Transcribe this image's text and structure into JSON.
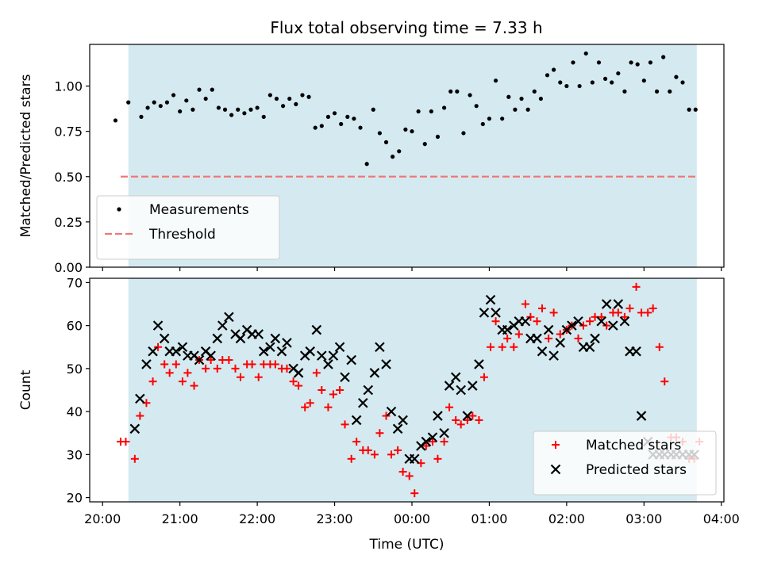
{
  "title": "Flux total observing time = 7.33 h",
  "chart_data": [
    {
      "type": "scatter",
      "title": "Flux total observing time = 7.33 h",
      "ylabel": "Matched/Predicted stars",
      "xlabel": "",
      "ylim": [
        0,
        1.23
      ],
      "xlim": [
        "20:10",
        "04:02"
      ],
      "yticks": [
        "0.00",
        "0.25",
        "0.50",
        "0.75",
        "1.00"
      ],
      "shaded_region": [
        "20:20",
        "03:41"
      ],
      "shaded_color": "#d4eaf0",
      "grid": false,
      "legend_position": "lower-left",
      "series": [
        {
          "name": "Measurements",
          "marker": "dot",
          "color": "#000000",
          "x": [
            "20:10",
            "20:20",
            "20:30",
            "20:35",
            "20:40",
            "20:45",
            "20:50",
            "20:55",
            "21:00",
            "21:05",
            "21:10",
            "21:15",
            "21:20",
            "21:25",
            "21:30",
            "21:35",
            "21:40",
            "21:45",
            "21:50",
            "21:55",
            "22:00",
            "22:05",
            "22:10",
            "22:15",
            "22:20",
            "22:25",
            "22:30",
            "22:35",
            "22:40",
            "22:45",
            "22:50",
            "22:55",
            "23:00",
            "23:05",
            "23:10",
            "23:15",
            "23:20",
            "23:25",
            "23:30",
            "23:35",
            "23:40",
            "23:45",
            "23:50",
            "23:55",
            "00:00",
            "00:05",
            "00:10",
            "00:15",
            "00:20",
            "00:25",
            "00:30",
            "00:35",
            "00:40",
            "00:45",
            "00:50",
            "00:55",
            "01:00",
            "01:05",
            "01:10",
            "01:15",
            "01:20",
            "01:25",
            "01:30",
            "01:35",
            "01:40",
            "01:45",
            "01:50",
            "01:55",
            "02:00",
            "02:05",
            "02:10",
            "02:15",
            "02:20",
            "02:25",
            "02:30",
            "02:35",
            "02:40",
            "02:45",
            "02:50",
            "02:55",
            "03:00",
            "03:05",
            "03:10",
            "03:15",
            "03:20",
            "03:25",
            "03:30",
            "03:35",
            "03:40"
          ],
          "y": [
            0.81,
            0.91,
            0.83,
            0.88,
            0.91,
            0.89,
            0.91,
            0.95,
            0.86,
            0.92,
            0.87,
            0.98,
            0.93,
            0.98,
            0.88,
            0.87,
            0.84,
            0.87,
            0.85,
            0.87,
            0.88,
            0.83,
            0.95,
            0.93,
            0.89,
            0.93,
            0.9,
            0.95,
            0.94,
            0.77,
            0.78,
            0.83,
            0.85,
            0.79,
            0.83,
            0.82,
            0.77,
            0.57,
            0.87,
            0.74,
            0.69,
            0.61,
            0.64,
            0.76,
            0.75,
            0.86,
            0.68,
            0.86,
            0.72,
            0.88,
            0.97,
            0.97,
            0.74,
            0.95,
            0.89,
            0.79,
            0.82,
            1.03,
            0.82,
            0.94,
            0.87,
            0.93,
            0.87,
            0.97,
            0.93,
            1.06,
            1.09,
            1.02,
            1.0,
            1.13,
            1.0,
            1.18,
            1.02,
            1.13,
            1.04,
            1.02,
            1.07,
            0.97,
            1.13,
            1.12,
            1.03,
            1.13,
            0.97,
            1.16,
            0.97,
            1.05,
            1.02,
            0.87,
            0.87
          ]
        },
        {
          "name": "Threshold",
          "marker": "dashed-line",
          "color": "#f27676",
          "x": [
            "20:14",
            "03:41"
          ],
          "y": [
            0.5,
            0.5
          ]
        }
      ]
    },
    {
      "type": "scatter",
      "title": "",
      "ylabel": "Count",
      "xlabel": "Time (UTC)",
      "ylim": [
        19,
        71
      ],
      "xlim": [
        "20:10",
        "04:02"
      ],
      "yticks": [
        "20",
        "30",
        "40",
        "50",
        "60",
        "70"
      ],
      "xticks": [
        "20:00",
        "21:00",
        "22:00",
        "23:00",
        "00:00",
        "01:00",
        "02:00",
        "03:00",
        "04:00"
      ],
      "shaded_region": [
        "20:20",
        "03:41"
      ],
      "shaded_color": "#d4eaf0",
      "grid": false,
      "legend_position": "lower-right",
      "series": [
        {
          "name": "Matched stars",
          "marker": "plus",
          "color": "#ff0000",
          "x": [
            "20:14",
            "20:18",
            "20:25",
            "20:29",
            "20:34",
            "20:39",
            "20:43",
            "20:48",
            "20:52",
            "20:57",
            "21:02",
            "21:06",
            "21:11",
            "21:15",
            "21:20",
            "21:24",
            "21:29",
            "21:33",
            "21:38",
            "21:43",
            "21:47",
            "21:52",
            "21:56",
            "22:01",
            "22:05",
            "22:10",
            "22:14",
            "22:19",
            "22:23",
            "22:28",
            "22:32",
            "22:37",
            "22:41",
            "22:46",
            "22:50",
            "22:55",
            "22:59",
            "23:04",
            "23:08",
            "23:13",
            "23:17",
            "23:22",
            "23:26",
            "23:31",
            "23:35",
            "23:40",
            "23:44",
            "23:49",
            "23:53",
            "23:58",
            "00:02",
            "00:07",
            "00:11",
            "00:16",
            "00:20",
            "00:25",
            "00:29",
            "00:34",
            "00:38",
            "00:43",
            "00:47",
            "00:52",
            "00:56",
            "01:01",
            "01:05",
            "01:10",
            "01:14",
            "01:19",
            "01:23",
            "01:28",
            "01:32",
            "01:37",
            "01:41",
            "01:46",
            "01:50",
            "01:55",
            "02:00",
            "02:04",
            "02:09",
            "02:13",
            "02:18",
            "02:22",
            "02:27",
            "02:31",
            "02:36",
            "02:40",
            "02:45",
            "02:49",
            "02:54",
            "02:58",
            "03:03",
            "03:07",
            "03:12",
            "03:16",
            "03:21",
            "03:25",
            "03:30",
            "03:35",
            "03:39",
            "03:43"
          ],
          "y": [
            33,
            33,
            29,
            39,
            42,
            47,
            55,
            51,
            49,
            51,
            47,
            49,
            46,
            52,
            50,
            52,
            50,
            52,
            52,
            50,
            48,
            51,
            51,
            48,
            51,
            51,
            51,
            50,
            50,
            47,
            46,
            41,
            42,
            49,
            45,
            41,
            44,
            45,
            37,
            29,
            33,
            31,
            31,
            30,
            35,
            39,
            30,
            31,
            26,
            25,
            21,
            28,
            32,
            33,
            29,
            33,
            41,
            38,
            37,
            38,
            39,
            38,
            48,
            55,
            61,
            55,
            57,
            55,
            58,
            65,
            62,
            61,
            64,
            57,
            63,
            58,
            59,
            60,
            57,
            60,
            61,
            62,
            62,
            60,
            63,
            63,
            62,
            64,
            69,
            63,
            63,
            64,
            55,
            47,
            34,
            34,
            33,
            29,
            29,
            33
          ],
          "x_note": ""
        },
        {
          "name": "Predicted stars",
          "marker": "x",
          "color": "#000000",
          "x": [
            "20:25",
            "20:29",
            "20:34",
            "20:39",
            "20:43",
            "20:48",
            "20:52",
            "20:57",
            "21:02",
            "21:06",
            "21:11",
            "21:15",
            "21:20",
            "21:24",
            "21:29",
            "21:33",
            "21:38",
            "21:43",
            "21:47",
            "21:52",
            "21:56",
            "22:01",
            "22:05",
            "22:10",
            "22:14",
            "22:19",
            "22:23",
            "22:28",
            "22:32",
            "22:37",
            "22:41",
            "22:46",
            "22:50",
            "22:55",
            "22:59",
            "23:04",
            "23:08",
            "23:13",
            "23:17",
            "23:22",
            "23:26",
            "23:31",
            "23:35",
            "23:40",
            "23:44",
            "23:49",
            "23:53",
            "23:58",
            "00:02",
            "00:07",
            "00:11",
            "00:16",
            "00:20",
            "00:25",
            "00:29",
            "00:34",
            "00:38",
            "00:43",
            "00:47",
            "00:52",
            "00:56",
            "01:01",
            "01:05",
            "01:10",
            "01:14",
            "01:19",
            "01:23",
            "01:28",
            "01:32",
            "01:37",
            "01:41",
            "01:46",
            "01:50",
            "01:55",
            "02:00",
            "02:04",
            "02:09",
            "02:13",
            "02:18",
            "02:22",
            "02:27",
            "02:31",
            "02:36",
            "02:40",
            "02:45",
            "02:49",
            "02:54",
            "02:58",
            "03:03",
            "03:07",
            "03:12",
            "03:16",
            "03:21",
            "03:25",
            "03:30",
            "03:35",
            "03:39"
          ],
          "y": [
            36,
            43,
            51,
            54,
            60,
            57,
            54,
            54,
            55,
            53,
            53,
            52,
            54,
            53,
            57,
            60,
            62,
            58,
            57,
            59,
            58,
            58,
            54,
            55,
            57,
            54,
            56,
            50,
            49,
            53,
            54,
            59,
            53,
            51,
            53,
            55,
            48,
            52,
            38,
            42,
            45,
            49,
            55,
            51,
            40,
            36,
            38,
            29,
            29,
            32,
            33,
            34,
            39,
            35,
            46,
            48,
            45,
            39,
            46,
            51,
            63,
            66,
            63,
            59,
            59,
            60,
            61,
            61,
            57,
            57,
            54,
            59,
            53,
            56,
            59,
            60,
            61,
            55,
            55,
            57,
            61,
            65,
            60,
            65,
            61,
            54,
            54,
            39,
            33,
            30,
            30,
            30,
            30,
            30,
            30,
            30,
            30
          ],
          "x_note": ""
        }
      ]
    }
  ]
}
